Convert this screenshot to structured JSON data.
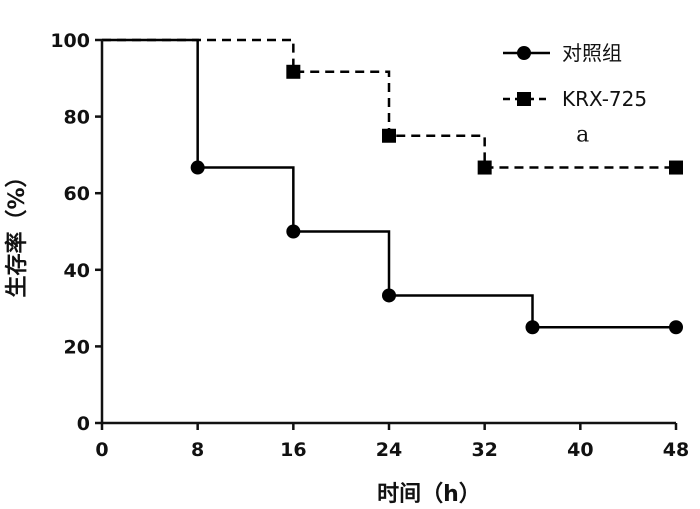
{
  "chart_data": {
    "type": "line",
    "xlabel": "时间（h）",
    "ylabel": "生存率（%）",
    "xlim": [
      0,
      48
    ],
    "ylim": [
      0,
      100
    ],
    "xticks": [
      0,
      8,
      16,
      24,
      32,
      40,
      48
    ],
    "yticks": [
      0,
      20,
      40,
      60,
      80,
      100
    ],
    "grid": false,
    "legend_position": "top-right",
    "step": true,
    "series": [
      {
        "name": "对照组",
        "marker": "circle",
        "line_style": "solid",
        "color": "#000000",
        "x": [
          8,
          16,
          24,
          36,
          48
        ],
        "y": [
          66.7,
          50,
          33.3,
          25,
          25
        ]
      },
      {
        "name": "KRX-725",
        "marker": "square",
        "line_style": "dashed",
        "color": "#000000",
        "x": [
          16,
          24,
          32,
          48
        ],
        "y": [
          91.7,
          75,
          66.7,
          66.7
        ]
      }
    ],
    "annotations": [
      {
        "text": "a",
        "x": 40.2,
        "y": 73.5
      }
    ]
  }
}
